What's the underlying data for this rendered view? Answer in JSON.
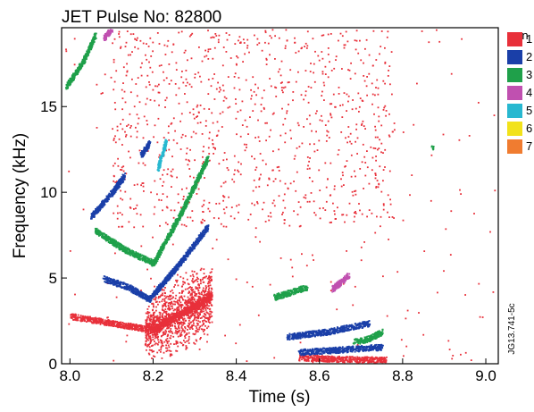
{
  "chart_data": {
    "type": "scatter",
    "title": "JET Pulse No: 82800",
    "xlabel": "Time (s)",
    "ylabel": "Frequency (kHz)",
    "xlim": [
      7.98,
      9.03
    ],
    "ylim": [
      0,
      19.6
    ],
    "xticks": [
      "8.0",
      "8.2",
      "8.4",
      "8.6",
      "8.8",
      "9.0"
    ],
    "xtick_values": [
      8.0,
      8.2,
      8.4,
      8.6,
      8.8,
      9.0
    ],
    "yticks": [
      "0",
      "5",
      "10",
      "15"
    ],
    "ytick_values": [
      0,
      5,
      10,
      15
    ],
    "legend_title": "n",
    "legend_position": "right",
    "figure_code": "JG13.741-5c",
    "series": [
      {
        "name": "1",
        "color": "#e8303a",
        "tracks": [
          {
            "x": [
              8.0,
              8.1,
              8.2
            ],
            "y": [
              2.8,
              2.4,
              2.0
            ]
          },
          {
            "x": [
              8.2,
              8.27,
              8.34
            ],
            "y": [
              2.0,
              3.0,
              4.0
            ]
          },
          {
            "x": [
              8.55,
              8.65,
              8.76
            ],
            "y": [
              0.4,
              0.3,
              0.25
            ]
          }
        ],
        "clouds": [
          {
            "x": [
              8.18,
              8.34
            ],
            "y": [
              0.3,
              5.6
            ],
            "density": "high"
          },
          {
            "x": [
              8.1,
              8.78
            ],
            "y": [
              8.0,
              19.6
            ],
            "density": "sparse"
          },
          {
            "x": [
              7.98,
              9.03
            ],
            "y": [
              0,
              19.6
            ],
            "density": "very sparse"
          }
        ]
      },
      {
        "name": "2",
        "color": "#1a3fa8",
        "tracks": [
          {
            "x": [
              8.05,
              8.1,
              8.13
            ],
            "y": [
              8.6,
              10.0,
              11.0
            ]
          },
          {
            "x": [
              8.17,
              8.19
            ],
            "y": [
              12.2,
              12.9
            ]
          },
          {
            "x": [
              8.08,
              8.14,
              8.19
            ],
            "y": [
              5.0,
              4.5,
              3.8
            ]
          },
          {
            "x": [
              8.19,
              8.26,
              8.33
            ],
            "y": [
              3.8,
              5.8,
              8.0
            ]
          },
          {
            "x": [
              8.52,
              8.62,
              8.72
            ],
            "y": [
              1.6,
              1.9,
              2.4
            ]
          },
          {
            "x": [
              8.55,
              8.65,
              8.75
            ],
            "y": [
              0.7,
              0.85,
              1.0
            ]
          }
        ]
      },
      {
        "name": "3",
        "color": "#1fa04a",
        "tracks": [
          {
            "x": [
              7.99,
              8.03,
              8.06
            ],
            "y": [
              16.2,
              17.6,
              19.2
            ]
          },
          {
            "x": [
              8.06,
              8.13,
              8.2
            ],
            "y": [
              7.8,
              6.7,
              5.9
            ]
          },
          {
            "x": [
              8.2,
              8.27,
              8.33
            ],
            "y": [
              5.9,
              9.0,
              12.0
            ]
          },
          {
            "x": [
              8.49,
              8.53,
              8.57
            ],
            "y": [
              3.9,
              4.2,
              4.5
            ]
          },
          {
            "x": [
              8.68,
              8.72,
              8.75
            ],
            "y": [
              1.3,
              1.5,
              1.9
            ]
          },
          {
            "x": [
              8.87
            ],
            "y": [
              12.6
            ]
          }
        ]
      },
      {
        "name": "4",
        "color": "#c050b0",
        "tracks": [
          {
            "x": [
              8.08,
              8.1
            ],
            "y": [
              19.0,
              19.6
            ]
          },
          {
            "x": [
              8.63,
              8.67
            ],
            "y": [
              4.4,
              5.2
            ]
          }
        ]
      },
      {
        "name": "5",
        "color": "#28b8d0",
        "tracks": [
          {
            "x": [
              8.21,
              8.23
            ],
            "y": [
              11.4,
              13.0
            ]
          }
        ]
      },
      {
        "name": "6",
        "color": "#f2e21a",
        "tracks": []
      },
      {
        "name": "7",
        "color": "#f07c30",
        "tracks": []
      }
    ]
  }
}
